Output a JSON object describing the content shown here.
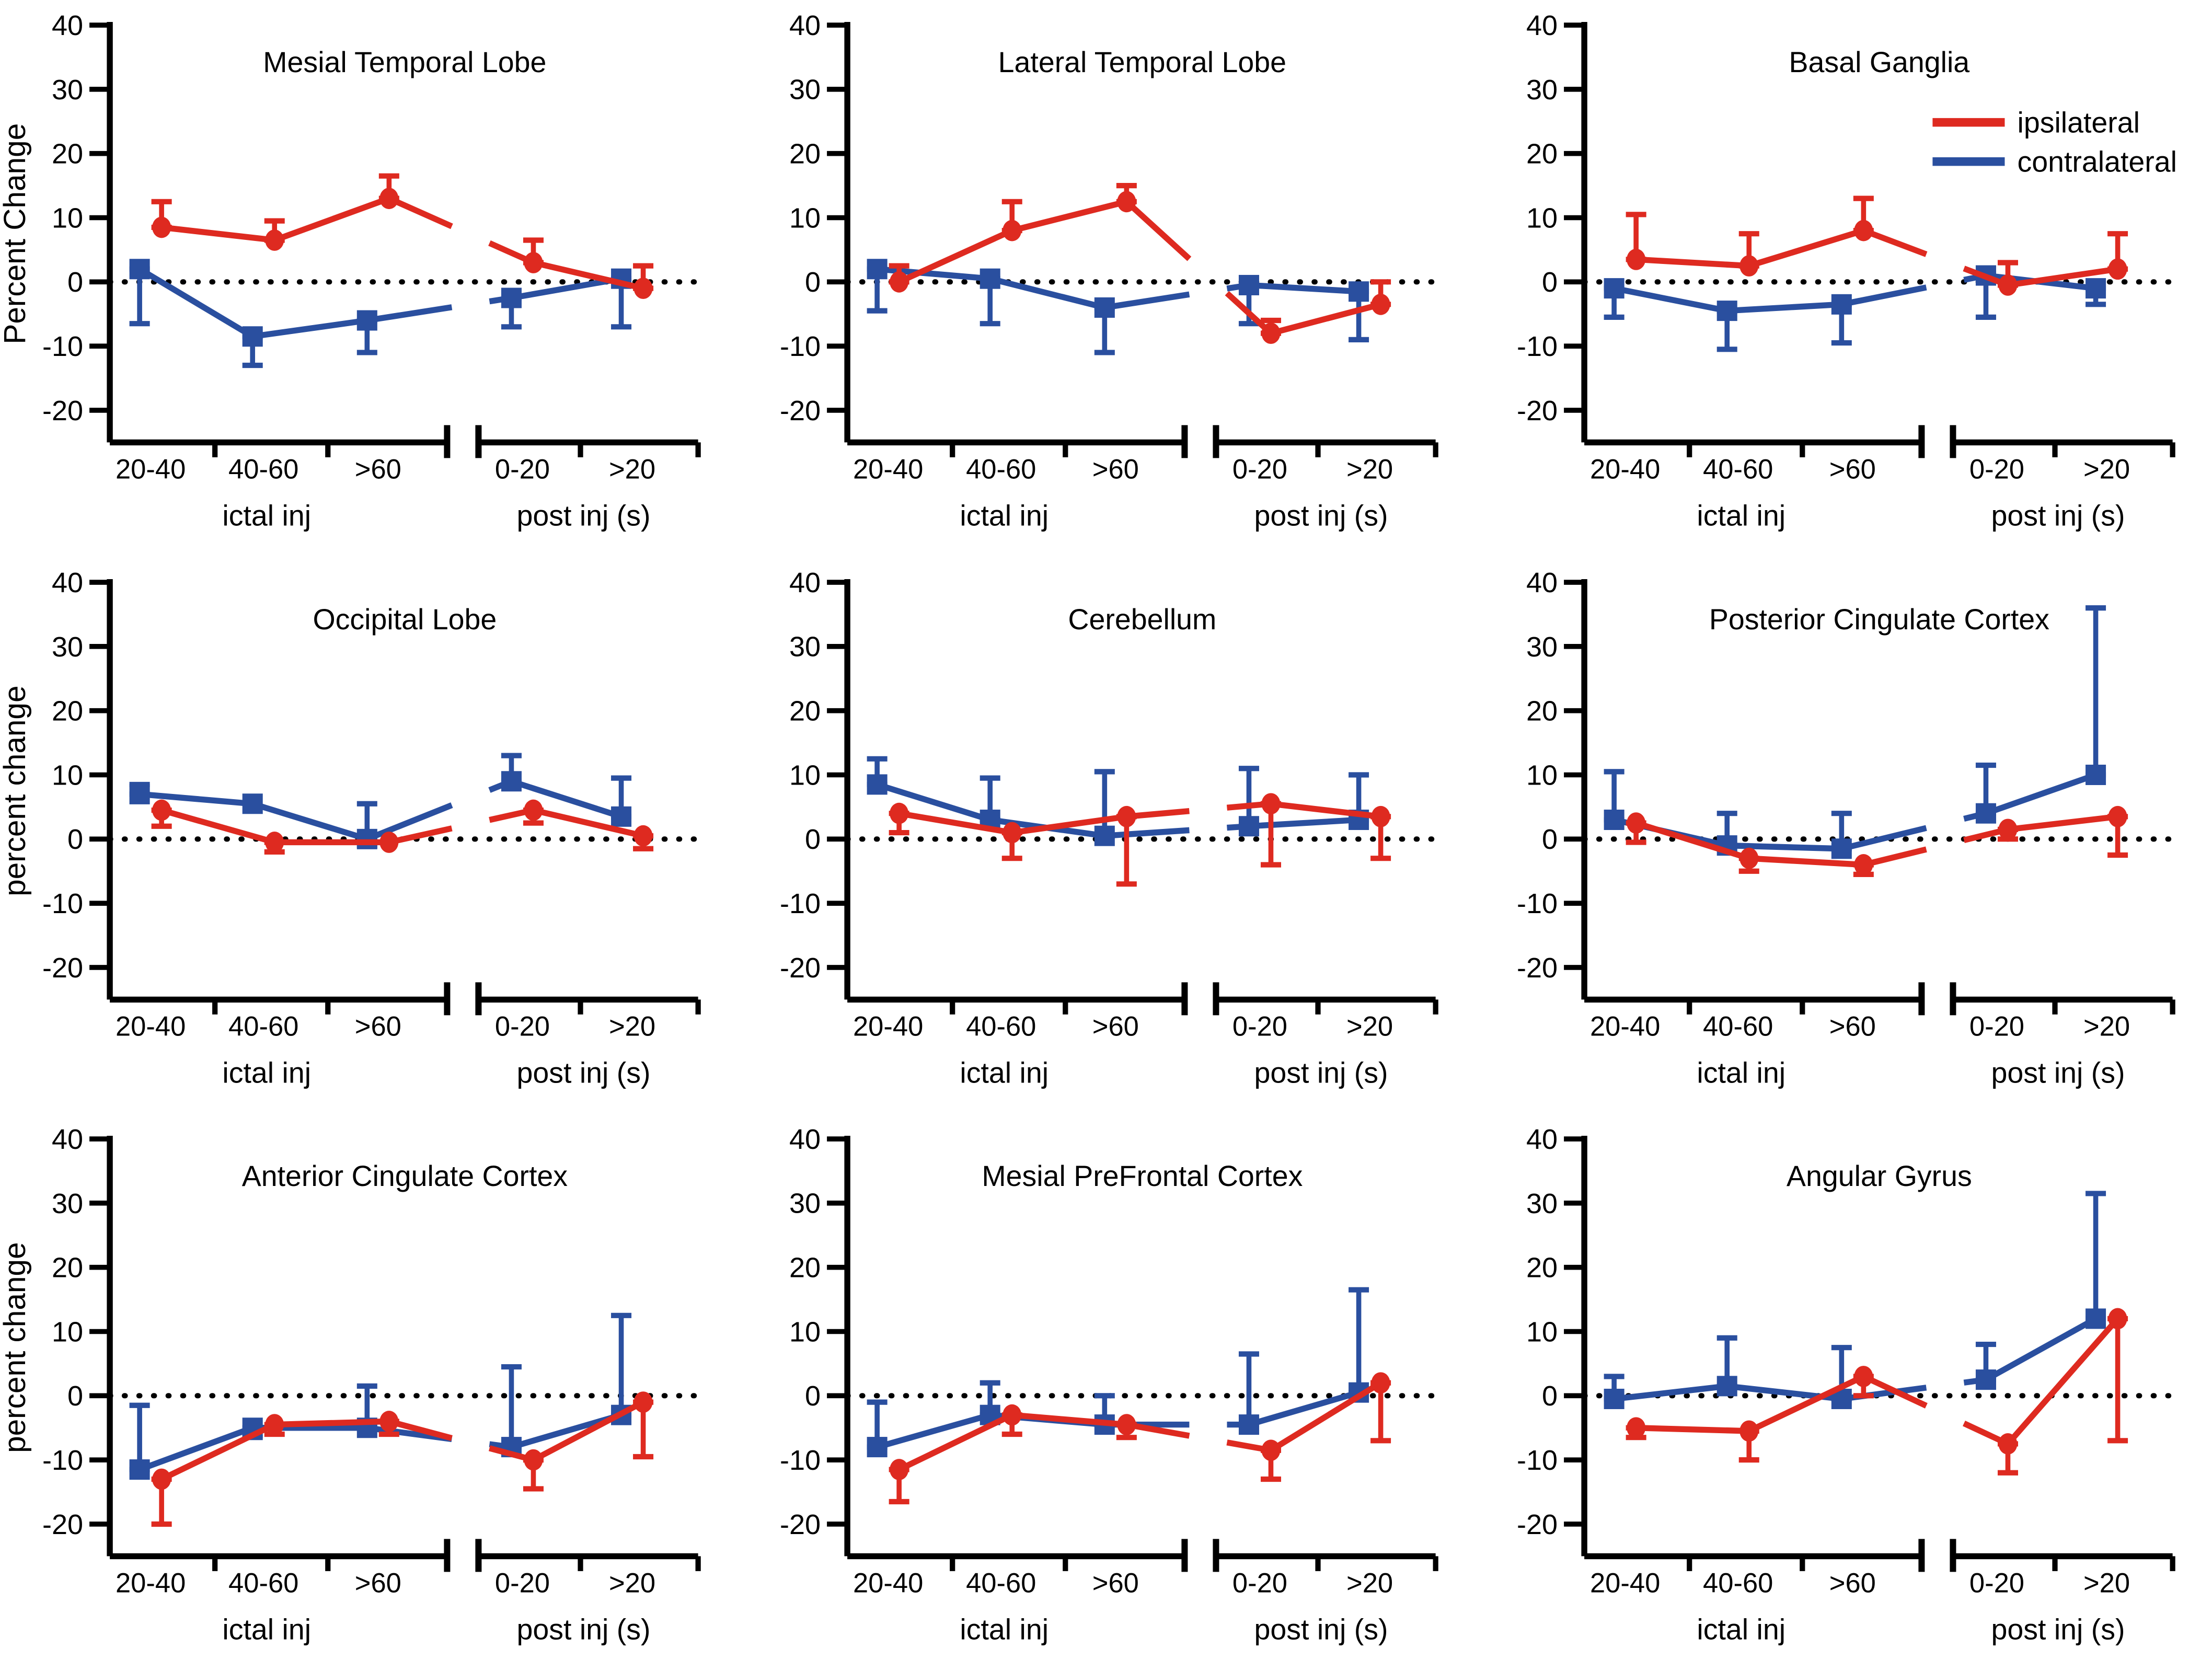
{
  "figure": {
    "background": "#ffffff"
  },
  "colors": {
    "ipsilateral": "#de2a20",
    "contralateral": "#2a4f9f",
    "axis": "#000000",
    "zero_line": "#000000"
  },
  "legend": {
    "items": [
      {
        "label": "ipsilateral",
        "series": "ipsilateral"
      },
      {
        "label": "contralateral",
        "series": "contralateral"
      }
    ]
  },
  "chart_data": [
    {
      "type": "line",
      "title": "Mesial Temporal Lobe",
      "ylabel": "Percent Change",
      "ylim": [
        -25,
        40
      ],
      "yticks": [
        40,
        30,
        20,
        10,
        0,
        -10,
        -20
      ],
      "zero_line": true,
      "x_axis_break": true,
      "show_legend": false,
      "categories": [
        "20-40",
        "40-60",
        ">60",
        "0-20",
        ">20"
      ],
      "category_groups": [
        {
          "label": "ictal inj",
          "categories": [
            "20-40",
            "40-60",
            ">60"
          ]
        },
        {
          "label": "post inj (s)",
          "categories": [
            "0-20",
            ">20"
          ]
        }
      ],
      "series": [
        {
          "name": "ipsilateral",
          "marker": "circle",
          "values": [
            8.5,
            6.5,
            13,
            3,
            -1
          ],
          "err_up": [
            4,
            3,
            3.5,
            3.5,
            3.5
          ],
          "err_down": [
            0,
            0,
            0,
            0,
            0
          ]
        },
        {
          "name": "contralateral",
          "marker": "square",
          "values": [
            2,
            -8.5,
            -6,
            -2.5,
            0.5
          ],
          "err_up": [
            0,
            0,
            0,
            0,
            0
          ],
          "err_down": [
            8.5,
            4.5,
            5,
            4.5,
            7.5
          ]
        }
      ]
    },
    {
      "type": "line",
      "title": "Lateral Temporal Lobe",
      "ylabel": "",
      "ylim": [
        -25,
        40
      ],
      "yticks": [
        40,
        30,
        20,
        10,
        0,
        -10,
        -20
      ],
      "zero_line": true,
      "x_axis_break": true,
      "show_legend": false,
      "categories": [
        "20-40",
        "40-60",
        ">60",
        "0-20",
        ">20"
      ],
      "category_groups": [
        {
          "label": "ictal inj",
          "categories": [
            "20-40",
            "40-60",
            ">60"
          ]
        },
        {
          "label": "post inj (s)",
          "categories": [
            "0-20",
            ">20"
          ]
        }
      ],
      "series": [
        {
          "name": "ipsilateral",
          "marker": "circle",
          "values": [
            0,
            8,
            12.5,
            -8,
            -3.5
          ],
          "err_up": [
            2.5,
            4.5,
            2.5,
            2,
            3.5
          ],
          "err_down": [
            0,
            0,
            0,
            0,
            0
          ]
        },
        {
          "name": "contralateral",
          "marker": "square",
          "values": [
            2,
            0.5,
            -4,
            -0.5,
            -1.5
          ],
          "err_up": [
            0,
            0,
            0,
            0,
            0
          ],
          "err_down": [
            6.5,
            7,
            7,
            6,
            7.5
          ]
        }
      ]
    },
    {
      "type": "line",
      "title": "Basal Ganglia",
      "ylabel": "",
      "ylim": [
        -25,
        40
      ],
      "yticks": [
        40,
        30,
        20,
        10,
        0,
        -10,
        -20
      ],
      "zero_line": true,
      "x_axis_break": true,
      "show_legend": true,
      "categories": [
        "20-40",
        "40-60",
        ">60",
        "0-20",
        ">20"
      ],
      "category_groups": [
        {
          "label": "ictal inj",
          "categories": [
            "20-40",
            "40-60",
            ">60"
          ]
        },
        {
          "label": "post inj (s)",
          "categories": [
            "0-20",
            ">20"
          ]
        }
      ],
      "series": [
        {
          "name": "ipsilateral",
          "marker": "circle",
          "values": [
            3.5,
            2.5,
            8,
            -0.5,
            2
          ],
          "err_up": [
            7,
            5,
            5,
            3.5,
            5.5
          ],
          "err_down": [
            0,
            0,
            0,
            0,
            0
          ]
        },
        {
          "name": "contralateral",
          "marker": "square",
          "values": [
            -1,
            -4.5,
            -3.5,
            1,
            -1
          ],
          "err_up": [
            0,
            0,
            0,
            0,
            0
          ],
          "err_down": [
            4.5,
            6,
            6,
            6.5,
            2.5
          ]
        }
      ]
    },
    {
      "type": "line",
      "title": "Occipital Lobe",
      "ylabel": "percent change",
      "ylim": [
        -25,
        40
      ],
      "yticks": [
        40,
        30,
        20,
        10,
        0,
        -10,
        -20
      ],
      "zero_line": true,
      "x_axis_break": true,
      "show_legend": false,
      "categories": [
        "20-40",
        "40-60",
        ">60",
        "0-20",
        ">20"
      ],
      "category_groups": [
        {
          "label": "ictal inj",
          "categories": [
            "20-40",
            "40-60",
            ">60"
          ]
        },
        {
          "label": "post inj (s)",
          "categories": [
            "0-20",
            ">20"
          ]
        }
      ],
      "series": [
        {
          "name": "ipsilateral",
          "marker": "circle",
          "values": [
            4.5,
            -0.5,
            -0.5,
            4.5,
            0.5
          ],
          "err_up": [
            0,
            0,
            0,
            0,
            0
          ],
          "err_down": [
            2.5,
            1.5,
            0,
            2,
            2
          ]
        },
        {
          "name": "contralateral",
          "marker": "square",
          "values": [
            7,
            5.5,
            0,
            9,
            3.5
          ],
          "err_up": [
            1.5,
            0,
            5.5,
            4,
            6
          ],
          "err_down": [
            0,
            0,
            1,
            0,
            0
          ]
        }
      ]
    },
    {
      "type": "line",
      "title": "Cerebellum",
      "ylabel": "",
      "ylim": [
        -25,
        40
      ],
      "yticks": [
        40,
        30,
        20,
        10,
        0,
        -10,
        -20
      ],
      "zero_line": true,
      "x_axis_break": true,
      "show_legend": false,
      "categories": [
        "20-40",
        "40-60",
        ">60",
        "0-20",
        ">20"
      ],
      "category_groups": [
        {
          "label": "ictal inj",
          "categories": [
            "20-40",
            "40-60",
            ">60"
          ]
        },
        {
          "label": "post inj (s)",
          "categories": [
            "0-20",
            ">20"
          ]
        }
      ],
      "series": [
        {
          "name": "ipsilateral",
          "marker": "circle",
          "values": [
            4,
            1,
            3.5,
            5.5,
            3.5
          ],
          "err_up": [
            0,
            0,
            0,
            0,
            0
          ],
          "err_down": [
            3,
            4,
            10.5,
            9.5,
            6.5
          ]
        },
        {
          "name": "contralateral",
          "marker": "square",
          "values": [
            8.5,
            3,
            0.5,
            2,
            3
          ],
          "err_up": [
            4,
            6.5,
            10,
            9,
            7
          ],
          "err_down": [
            0,
            0,
            0,
            0,
            0
          ]
        }
      ]
    },
    {
      "type": "line",
      "title": "Posterior Cingulate Cortex",
      "ylabel": "",
      "ylim": [
        -25,
        40
      ],
      "yticks": [
        40,
        30,
        20,
        10,
        0,
        -10,
        -20
      ],
      "zero_line": true,
      "x_axis_break": true,
      "show_legend": false,
      "categories": [
        "20-40",
        "40-60",
        ">60",
        "0-20",
        ">20"
      ],
      "category_groups": [
        {
          "label": "ictal inj",
          "categories": [
            "20-40",
            "40-60",
            ">60"
          ]
        },
        {
          "label": "post inj (s)",
          "categories": [
            "0-20",
            ">20"
          ]
        }
      ],
      "series": [
        {
          "name": "ipsilateral",
          "marker": "circle",
          "values": [
            2.5,
            -3,
            -4,
            1.5,
            3.5
          ],
          "err_up": [
            0,
            0,
            0,
            0,
            0
          ],
          "err_down": [
            3,
            2,
            1.5,
            1.5,
            6
          ]
        },
        {
          "name": "contralateral",
          "marker": "square",
          "values": [
            3,
            -1,
            -1.5,
            4,
            10
          ],
          "err_up": [
            7.5,
            5,
            5.5,
            7.5,
            26
          ],
          "err_down": [
            0,
            0,
            0,
            0,
            0
          ]
        }
      ]
    },
    {
      "type": "line",
      "title": "Anterior Cingulate Cortex",
      "ylabel": "percent change",
      "ylim": [
        -25,
        40
      ],
      "yticks": [
        40,
        30,
        20,
        10,
        0,
        -10,
        -20
      ],
      "zero_line": true,
      "x_axis_break": true,
      "show_legend": false,
      "categories": [
        "20-40",
        "40-60",
        ">60",
        "0-20",
        ">20"
      ],
      "category_groups": [
        {
          "label": "ictal inj",
          "categories": [
            "20-40",
            "40-60",
            ">60"
          ]
        },
        {
          "label": "post inj (s)",
          "categories": [
            "0-20",
            ">20"
          ]
        }
      ],
      "series": [
        {
          "name": "ipsilateral",
          "marker": "circle",
          "values": [
            -13,
            -4.5,
            -4,
            -10,
            -1
          ],
          "err_up": [
            0,
            0,
            0,
            0,
            0
          ],
          "err_down": [
            7,
            1.5,
            2,
            4.5,
            8.5
          ]
        },
        {
          "name": "contralateral",
          "marker": "square",
          "values": [
            -11.5,
            -5,
            -5,
            -8,
            -3
          ],
          "err_up": [
            10,
            0,
            6.5,
            12.5,
            15.5
          ],
          "err_down": [
            0,
            1.5,
            0,
            0,
            0
          ]
        }
      ]
    },
    {
      "type": "line",
      "title": "Mesial PreFrontal Cortex",
      "ylabel": "",
      "ylim": [
        -25,
        40
      ],
      "yticks": [
        40,
        30,
        20,
        10,
        0,
        -10,
        -20
      ],
      "zero_line": true,
      "x_axis_break": true,
      "show_legend": false,
      "categories": [
        "20-40",
        "40-60",
        ">60",
        "0-20",
        ">20"
      ],
      "category_groups": [
        {
          "label": "ictal inj",
          "categories": [
            "20-40",
            "40-60",
            ">60"
          ]
        },
        {
          "label": "post inj (s)",
          "categories": [
            "0-20",
            ">20"
          ]
        }
      ],
      "series": [
        {
          "name": "ipsilateral",
          "marker": "circle",
          "values": [
            -11.5,
            -3,
            -4.5,
            -8.5,
            2
          ],
          "err_up": [
            0,
            0,
            0,
            0,
            0
          ],
          "err_down": [
            5,
            3,
            2,
            4.5,
            9
          ]
        },
        {
          "name": "contralateral",
          "marker": "square",
          "values": [
            -8,
            -3,
            -4.5,
            -4.5,
            0.5
          ],
          "err_up": [
            7,
            5,
            4.5,
            11,
            16
          ],
          "err_down": [
            0,
            0,
            0,
            0,
            0
          ]
        }
      ]
    },
    {
      "type": "line",
      "title": "Angular Gyrus",
      "ylabel": "",
      "ylim": [
        -25,
        40
      ],
      "yticks": [
        40,
        30,
        20,
        10,
        0,
        -10,
        -20
      ],
      "zero_line": true,
      "x_axis_break": true,
      "show_legend": false,
      "categories": [
        "20-40",
        "40-60",
        ">60",
        "0-20",
        ">20"
      ],
      "category_groups": [
        {
          "label": "ictal inj",
          "categories": [
            "20-40",
            "40-60",
            ">60"
          ]
        },
        {
          "label": "post inj (s)",
          "categories": [
            "0-20",
            ">20"
          ]
        }
      ],
      "series": [
        {
          "name": "ipsilateral",
          "marker": "circle",
          "values": [
            -5,
            -5.5,
            3,
            -7.5,
            12
          ],
          "err_up": [
            0,
            0,
            0,
            0,
            0
          ],
          "err_down": [
            1.5,
            4.5,
            3,
            4.5,
            19
          ]
        },
        {
          "name": "contralateral",
          "marker": "square",
          "values": [
            -0.5,
            1.5,
            -0.5,
            2.5,
            12
          ],
          "err_up": [
            3.5,
            7.5,
            8,
            5.5,
            19.5
          ],
          "err_down": [
            0,
            0,
            0,
            0,
            0
          ]
        }
      ]
    }
  ]
}
